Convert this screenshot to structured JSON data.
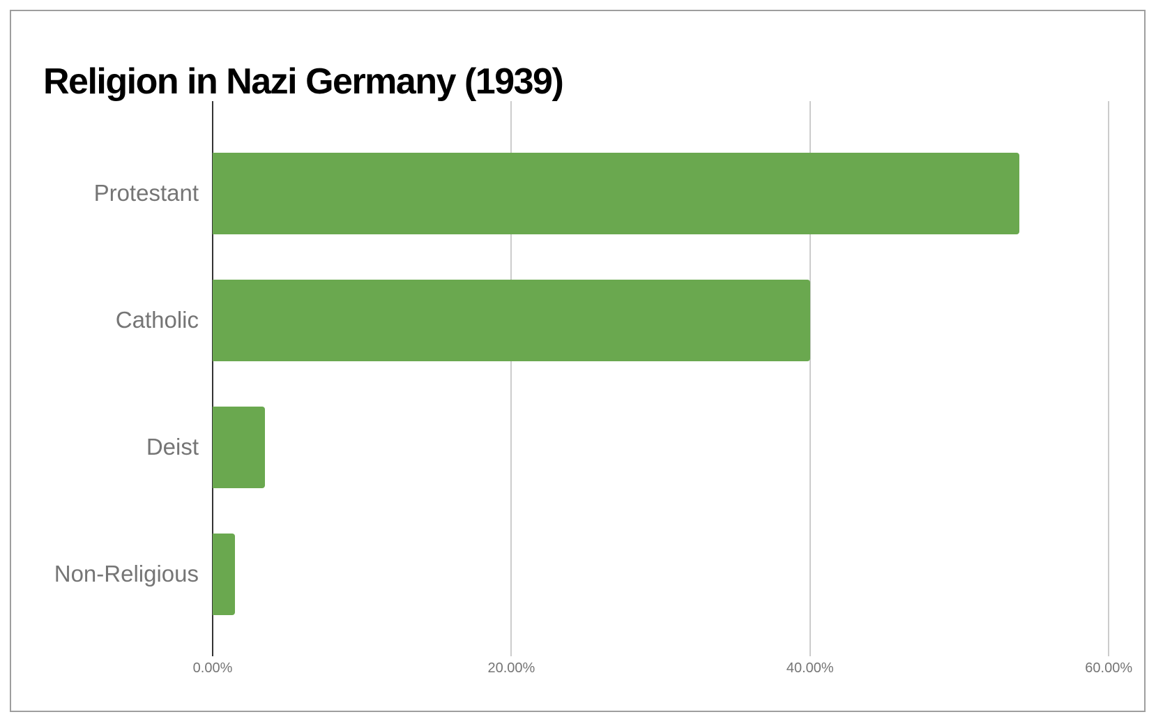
{
  "title": "Religion in Nazi Germany (1939)",
  "chart_data": {
    "type": "bar",
    "orientation": "horizontal",
    "title": "Religion in Nazi Germany (1939)",
    "categories": [
      "Protestant",
      "Catholic",
      "Deist",
      "Non-Religious"
    ],
    "values": [
      54,
      40,
      3.5,
      1.5
    ],
    "unit": "percent",
    "xlabel": "",
    "ylabel": "",
    "xlim": [
      0,
      62
    ],
    "x_ticks": [
      {
        "value": 0,
        "label": "0.00%"
      },
      {
        "value": 20,
        "label": "20.00%"
      },
      {
        "value": 40,
        "label": "40.00%"
      },
      {
        "value": 60,
        "label": "60.00%"
      }
    ],
    "grid": true,
    "legend": false,
    "bar_color": "#6aa84f",
    "axis_line_color": "#333333",
    "gridline_color": "#cccccc",
    "label_color": "#757575",
    "title_color": "#000000",
    "background_color": "#ffffff",
    "frame_color": "#9e9e9e"
  }
}
